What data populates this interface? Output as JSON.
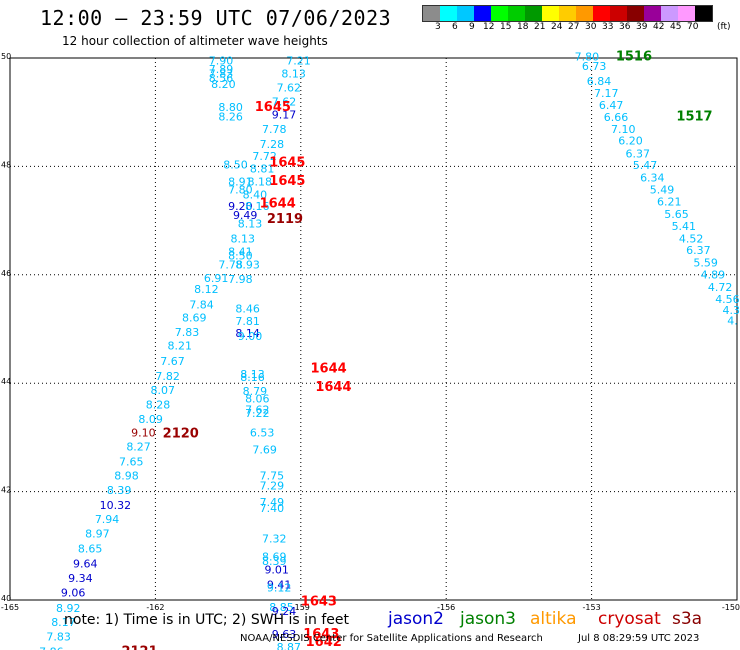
{
  "header": {
    "title": "12:00 – 23:59 UTC 07/06/2023",
    "subtitle": "12 hour collection of altimeter wave heights"
  },
  "colorbar": {
    "colors": [
      "#8c8c8c",
      "#00ffff",
      "#00c8ff",
      "#0000ff",
      "#00ff00",
      "#00cc00",
      "#009900",
      "#ffff00",
      "#ffcc00",
      "#ff9900",
      "#ff0000",
      "#cc0000",
      "#880000",
      "#990099",
      "#cc99ff",
      "#ff99ff",
      "#000000"
    ],
    "labels": [
      "3",
      "6",
      "9",
      "12",
      "15",
      "18",
      "21",
      "24",
      "27",
      "30",
      "33",
      "36",
      "39",
      "42",
      "45",
      "70"
    ],
    "unit": "(ft)"
  },
  "map": {
    "lat_ticks": [
      "50",
      "48",
      "46",
      "44",
      "42",
      "40"
    ],
    "lon_ticks": [
      "-165",
      "-162",
      "-159",
      "-156",
      "-153",
      "-150"
    ],
    "lat_range": [
      40,
      50
    ],
    "lon_range": [
      -165,
      -150
    ],
    "gridline_lons": [
      -162,
      -159,
      -156,
      -153
    ],
    "gridline_lats": [
      48,
      46,
      44,
      42
    ]
  },
  "colors": {
    "cyan": "#00bfff",
    "blue": "#0000cc",
    "green": "#008000",
    "red": "#ff0000",
    "darkred": "#990000"
  },
  "wave_labels": [
    {
      "t": "7.90",
      "lon": -160.9,
      "lat": 49.88,
      "c": "cyan"
    },
    {
      "t": "7.89",
      "lon": -160.9,
      "lat": 49.72,
      "c": "cyan"
    },
    {
      "t": "7.83",
      "lon": -160.9,
      "lat": 49.64,
      "c": "cyan"
    },
    {
      "t": "8.56",
      "lon": -160.9,
      "lat": 49.56,
      "c": "cyan"
    },
    {
      "t": "8.20",
      "lon": -160.85,
      "lat": 49.45,
      "c": "cyan"
    },
    {
      "t": "7.21",
      "lon": -159.3,
      "lat": 49.88,
      "c": "cyan"
    },
    {
      "t": "8.13",
      "lon": -159.4,
      "lat": 49.64,
      "c": "cyan"
    },
    {
      "t": "7.62",
      "lon": -159.5,
      "lat": 49.38,
      "c": "cyan"
    },
    {
      "t": "7.62",
      "lon": -159.6,
      "lat": 49.12,
      "c": "cyan"
    },
    {
      "t": "8.80",
      "lon": -160.7,
      "lat": 49.02,
      "c": "cyan"
    },
    {
      "t": "8.26",
      "lon": -160.7,
      "lat": 48.85,
      "c": "cyan"
    },
    {
      "t": "9.17",
      "lon": -159.6,
      "lat": 48.88,
      "c": "blue"
    },
    {
      "t": "7.78",
      "lon": -159.8,
      "lat": 48.62,
      "c": "cyan"
    },
    {
      "t": "7.28",
      "lon": -159.85,
      "lat": 48.34,
      "c": "cyan"
    },
    {
      "t": "7.72",
      "lon": -160.0,
      "lat": 48.12,
      "c": "cyan"
    },
    {
      "t": "8.50",
      "lon": -160.6,
      "lat": 47.96,
      "c": "cyan"
    },
    {
      "t": "8.81",
      "lon": -160.05,
      "lat": 47.89,
      "c": "cyan"
    },
    {
      "t": "8.91",
      "lon": -160.5,
      "lat": 47.65,
      "c": "cyan"
    },
    {
      "t": "8.18",
      "lon": -160.1,
      "lat": 47.65,
      "c": "cyan"
    },
    {
      "t": "7.80",
      "lon": -160.5,
      "lat": 47.5,
      "c": "cyan"
    },
    {
      "t": "8.40",
      "lon": -160.2,
      "lat": 47.41,
      "c": "cyan"
    },
    {
      "t": "9.20",
      "lon": -160.5,
      "lat": 47.2,
      "c": "blue"
    },
    {
      "t": "8.16",
      "lon": -160.15,
      "lat": 47.2,
      "c": "cyan"
    },
    {
      "t": "9.49",
      "lon": -160.4,
      "lat": 47.03,
      "c": "blue"
    },
    {
      "t": "8.13",
      "lon": -160.3,
      "lat": 46.87,
      "c": "cyan"
    },
    {
      "t": "8.13",
      "lon": -160.45,
      "lat": 46.6,
      "c": "cyan"
    },
    {
      "t": "8.41",
      "lon": -160.5,
      "lat": 46.36,
      "c": "cyan"
    },
    {
      "t": "8.50",
      "lon": -160.5,
      "lat": 46.28,
      "c": "cyan"
    },
    {
      "t": "7.78",
      "lon": -160.7,
      "lat": 46.12,
      "c": "cyan"
    },
    {
      "t": "8.93",
      "lon": -160.35,
      "lat": 46.12,
      "c": "cyan"
    },
    {
      "t": "6.91",
      "lon": -161.0,
      "lat": 45.87,
      "c": "cyan"
    },
    {
      "t": "7.98",
      "lon": -160.5,
      "lat": 45.85,
      "c": "cyan"
    },
    {
      "t": "8.12",
      "lon": -161.2,
      "lat": 45.66,
      "c": "cyan"
    },
    {
      "t": "7.84",
      "lon": -161.3,
      "lat": 45.38,
      "c": "cyan"
    },
    {
      "t": "8.46",
      "lon": -160.35,
      "lat": 45.3,
      "c": "cyan"
    },
    {
      "t": "8.69",
      "lon": -161.45,
      "lat": 45.14,
      "c": "cyan"
    },
    {
      "t": "7.81",
      "lon": -160.35,
      "lat": 45.07,
      "c": "cyan"
    },
    {
      "t": "7.83",
      "lon": -161.6,
      "lat": 44.87,
      "c": "cyan"
    },
    {
      "t": "8.14",
      "lon": -160.35,
      "lat": 44.85,
      "c": "blue"
    },
    {
      "t": "9.00",
      "lon": -160.3,
      "lat": 44.8,
      "c": "cyan"
    },
    {
      "t": "8.21",
      "lon": -161.75,
      "lat": 44.62,
      "c": "cyan"
    },
    {
      "t": "7.67",
      "lon": -161.9,
      "lat": 44.34,
      "c": "cyan"
    },
    {
      "t": "8.13",
      "lon": -160.25,
      "lat": 44.1,
      "c": "cyan"
    },
    {
      "t": "8.16",
      "lon": -160.25,
      "lat": 44.04,
      "c": "cyan"
    },
    {
      "t": "7.82",
      "lon": -162.0,
      "lat": 44.06,
      "c": "cyan"
    },
    {
      "t": "8.07",
      "lon": -162.1,
      "lat": 43.8,
      "c": "cyan"
    },
    {
      "t": "8.79",
      "lon": -160.2,
      "lat": 43.78,
      "c": "cyan"
    },
    {
      "t": "8.06",
      "lon": -160.15,
      "lat": 43.64,
      "c": "cyan"
    },
    {
      "t": "8.28",
      "lon": -162.2,
      "lat": 43.53,
      "c": "cyan"
    },
    {
      "t": "7.62",
      "lon": -160.15,
      "lat": 43.44,
      "c": "cyan"
    },
    {
      "t": "7.22",
      "lon": -160.15,
      "lat": 43.38,
      "c": "cyan"
    },
    {
      "t": "8.09",
      "lon": -162.35,
      "lat": 43.27,
      "c": "cyan"
    },
    {
      "t": "9.10",
      "lon": -162.5,
      "lat": 43.02,
      "c": "darkred"
    },
    {
      "t": "6.53",
      "lon": -160.05,
      "lat": 43.02,
      "c": "cyan"
    },
    {
      "t": "8.27",
      "lon": -162.6,
      "lat": 42.76,
      "c": "cyan"
    },
    {
      "t": "7.69",
      "lon": -160.0,
      "lat": 42.7,
      "c": "cyan"
    },
    {
      "t": "7.65",
      "lon": -162.75,
      "lat": 42.48,
      "c": "cyan"
    },
    {
      "t": "8.98",
      "lon": -162.85,
      "lat": 42.22,
      "c": "cyan"
    },
    {
      "t": "7.75",
      "lon": -159.85,
      "lat": 42.22,
      "c": "cyan"
    },
    {
      "t": "7.29",
      "lon": -159.85,
      "lat": 42.04,
      "c": "cyan"
    },
    {
      "t": "8.39",
      "lon": -163.0,
      "lat": 41.96,
      "c": "cyan"
    },
    {
      "t": "7.49",
      "lon": -159.85,
      "lat": 41.73,
      "c": "cyan"
    },
    {
      "t": "10.32",
      "lon": -163.15,
      "lat": 41.68,
      "c": "blue"
    },
    {
      "t": "7.40",
      "lon": -159.85,
      "lat": 41.62,
      "c": "cyan"
    },
    {
      "t": "7.94",
      "lon": -163.25,
      "lat": 41.42,
      "c": "cyan"
    },
    {
      "t": "7.32",
      "lon": -159.8,
      "lat": 41.06,
      "c": "cyan"
    },
    {
      "t": "8.97",
      "lon": -163.45,
      "lat": 41.15,
      "c": "cyan"
    },
    {
      "t": "8.65",
      "lon": -163.6,
      "lat": 40.88,
      "c": "cyan"
    },
    {
      "t": "8.69",
      "lon": -159.8,
      "lat": 40.73,
      "c": "cyan"
    },
    {
      "t": "8.39",
      "lon": -159.8,
      "lat": 40.65,
      "c": "cyan"
    },
    {
      "t": "9.64",
      "lon": -163.7,
      "lat": 40.6,
      "c": "blue"
    },
    {
      "t": "9.01",
      "lon": -159.75,
      "lat": 40.49,
      "c": "blue"
    },
    {
      "t": "9.34",
      "lon": -163.8,
      "lat": 40.33,
      "c": "blue"
    },
    {
      "t": "9.41",
      "lon": -159.7,
      "lat": 40.21,
      "c": "blue"
    },
    {
      "t": "9.12",
      "lon": -159.7,
      "lat": 40.16,
      "c": "cyan"
    },
    {
      "t": "9.06",
      "lon": -163.95,
      "lat": 40.06,
      "c": "blue"
    },
    {
      "t": "8.92",
      "lon": -164.05,
      "lat": 39.78,
      "c": "cyan"
    },
    {
      "t": "8.85",
      "lon": -159.65,
      "lat": 39.8,
      "c": "cyan"
    },
    {
      "t": "9.24",
      "lon": -159.6,
      "lat": 39.72,
      "c": "blue"
    },
    {
      "t": "8.17",
      "lon": -164.15,
      "lat": 39.52,
      "c": "cyan"
    },
    {
      "t": "9.63",
      "lon": -159.6,
      "lat": 39.3,
      "c": "blue"
    },
    {
      "t": "7.83",
      "lon": -164.25,
      "lat": 39.25,
      "c": "cyan"
    },
    {
      "t": "8.87",
      "lon": -159.5,
      "lat": 39.06,
      "c": "cyan"
    },
    {
      "t": "7.86",
      "lon": -164.4,
      "lat": 38.98,
      "c": "cyan"
    },
    {
      "t": "7.80",
      "lon": -153.35,
      "lat": 49.95,
      "c": "cyan"
    },
    {
      "t": "6.73",
      "lon": -153.2,
      "lat": 49.78,
      "c": "cyan"
    },
    {
      "t": "6.84",
      "lon": -153.1,
      "lat": 49.5,
      "c": "cyan"
    },
    {
      "t": "7.17",
      "lon": -152.95,
      "lat": 49.28,
      "c": "cyan"
    },
    {
      "t": "6.47",
      "lon": -152.85,
      "lat": 49.06,
      "c": "cyan"
    },
    {
      "t": "6.66",
      "lon": -152.75,
      "lat": 48.84,
      "c": "cyan"
    },
    {
      "t": "7.10",
      "lon": -152.6,
      "lat": 48.62,
      "c": "cyan"
    },
    {
      "t": "6.20",
      "lon": -152.45,
      "lat": 48.4,
      "c": "cyan"
    },
    {
      "t": "6.37",
      "lon": -152.3,
      "lat": 48.16,
      "c": "cyan"
    },
    {
      "t": "5.47",
      "lon": -152.15,
      "lat": 47.95,
      "c": "cyan"
    },
    {
      "t": "6.34",
      "lon": -152.0,
      "lat": 47.72,
      "c": "cyan"
    },
    {
      "t": "5.49",
      "lon": -151.8,
      "lat": 47.5,
      "c": "cyan"
    },
    {
      "t": "6.21",
      "lon": -151.65,
      "lat": 47.28,
      "c": "cyan"
    },
    {
      "t": "5.65",
      "lon": -151.5,
      "lat": 47.05,
      "c": "cyan"
    },
    {
      "t": "5.41",
      "lon": -151.35,
      "lat": 46.83,
      "c": "cyan"
    },
    {
      "t": "4.52",
      "lon": -151.2,
      "lat": 46.6,
      "c": "cyan"
    },
    {
      "t": "6.37",
      "lon": -151.05,
      "lat": 46.38,
      "c": "cyan"
    },
    {
      "t": "5.59",
      "lon": -150.9,
      "lat": 46.15,
      "c": "cyan"
    },
    {
      "t": "4.89",
      "lon": -150.75,
      "lat": 45.93,
      "c": "cyan"
    },
    {
      "t": "4.72",
      "lon": -150.6,
      "lat": 45.7,
      "c": "cyan"
    },
    {
      "t": "4.56",
      "lon": -150.45,
      "lat": 45.48,
      "c": "cyan"
    },
    {
      "t": "4.3",
      "lon": -150.3,
      "lat": 45.28,
      "c": "cyan"
    },
    {
      "t": "4.",
      "lon": -150.2,
      "lat": 45.08,
      "c": "cyan"
    }
  ],
  "time_labels": [
    {
      "t": "1516",
      "lon": -152.5,
      "lat": 49.95,
      "c": "green"
    },
    {
      "t": "1517",
      "lon": -151.25,
      "lat": 48.85,
      "c": "green"
    },
    {
      "t": "1645",
      "lon": -159.95,
      "lat": 49.02,
      "c": "red"
    },
    {
      "t": "1645",
      "lon": -159.65,
      "lat": 48.0,
      "c": "red"
    },
    {
      "t": "1645",
      "lon": -159.65,
      "lat": 47.66,
      "c": "red"
    },
    {
      "t": "1644",
      "lon": -159.85,
      "lat": 47.24,
      "c": "red"
    },
    {
      "t": "2119",
      "lon": -159.7,
      "lat": 46.96,
      "c": "darkred"
    },
    {
      "t": "2120",
      "lon": -161.85,
      "lat": 43.0,
      "c": "darkred"
    },
    {
      "t": "1644",
      "lon": -158.8,
      "lat": 44.2,
      "c": "red"
    },
    {
      "t": "1644",
      "lon": -158.7,
      "lat": 43.86,
      "c": "red"
    },
    {
      "t": "1643",
      "lon": -159.0,
      "lat": 39.9,
      "c": "red"
    },
    {
      "t": "1643",
      "lon": -158.95,
      "lat": 39.3,
      "c": "red"
    },
    {
      "t": "1642",
      "lon": -158.9,
      "lat": 39.15,
      "c": "red"
    },
    {
      "t": "2121",
      "lon": -162.7,
      "lat": 38.98,
      "c": "darkred"
    }
  ],
  "footer": {
    "note": "note: 1) Time is in UTC; 2) SWH is in feet",
    "satellites": [
      {
        "name": "jason2",
        "color": "#0000cc"
      },
      {
        "name": "jason3",
        "color": "#008000"
      },
      {
        "name": "altika",
        "color": "#ff9900"
      },
      {
        "name": "cryosat",
        "color": "#cc0000"
      },
      {
        "name": "s3a",
        "color": "#880000"
      }
    ],
    "credit": "NOAA/NESDIS Center for Satellite Applications and Research",
    "date": "Jul 8 08:29:59 UTC 2023"
  }
}
